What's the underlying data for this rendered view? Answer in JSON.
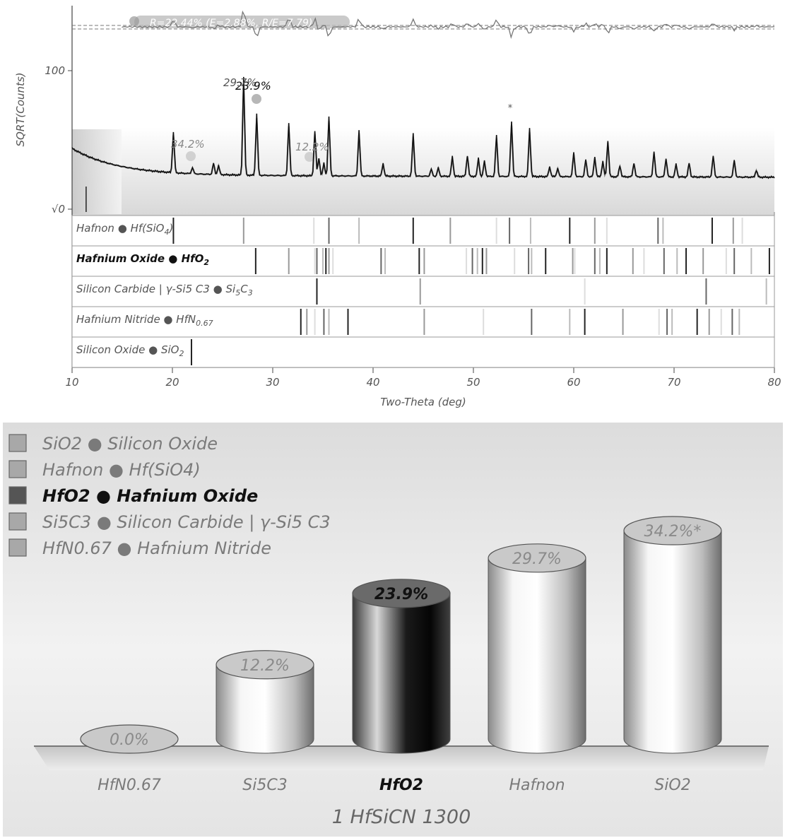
{
  "chart_data": [
    {
      "type": "line",
      "ylabel": "SQRT(Counts)",
      "xlabel": "Two-Theta (deg)",
      "xlim": [
        10,
        80
      ],
      "x_ticks": [
        "10",
        "20",
        "30",
        "40",
        "50",
        "60",
        "70",
        "80"
      ],
      "y_ticks": [
        "√0",
        "100"
      ],
      "residual_label": "R=22.44% (E=2.88%, R/E=7.79)",
      "peak_labels": [
        "29.7%",
        "23.9%",
        "34.2%",
        "12.2%",
        "*"
      ],
      "pattern_peaks": [
        {
          "x": 20.1,
          "y": 57
        },
        {
          "x": 22.0,
          "y": 9
        },
        {
          "x": 24.1,
          "y": 16
        },
        {
          "x": 24.6,
          "y": 13
        },
        {
          "x": 27.1,
          "y": 140
        },
        {
          "x": 28.4,
          "y": 87
        },
        {
          "x": 31.6,
          "y": 75
        },
        {
          "x": 34.2,
          "y": 64
        },
        {
          "x": 34.6,
          "y": 26
        },
        {
          "x": 35.1,
          "y": 18
        },
        {
          "x": 35.6,
          "y": 84
        },
        {
          "x": 38.6,
          "y": 65
        },
        {
          "x": 41.0,
          "y": 18
        },
        {
          "x": 44.0,
          "y": 60
        },
        {
          "x": 45.8,
          "y": 10
        },
        {
          "x": 46.5,
          "y": 12
        },
        {
          "x": 47.9,
          "y": 28
        },
        {
          "x": 49.4,
          "y": 30
        },
        {
          "x": 50.5,
          "y": 26
        },
        {
          "x": 51.1,
          "y": 22
        },
        {
          "x": 52.3,
          "y": 58
        },
        {
          "x": 53.8,
          "y": 78
        },
        {
          "x": 55.6,
          "y": 68
        },
        {
          "x": 57.6,
          "y": 14
        },
        {
          "x": 58.4,
          "y": 12
        },
        {
          "x": 60.0,
          "y": 34
        },
        {
          "x": 61.2,
          "y": 24
        },
        {
          "x": 62.1,
          "y": 28
        },
        {
          "x": 62.9,
          "y": 22
        },
        {
          "x": 63.4,
          "y": 52
        },
        {
          "x": 64.6,
          "y": 16
        },
        {
          "x": 66.0,
          "y": 20
        },
        {
          "x": 68.0,
          "y": 36
        },
        {
          "x": 69.2,
          "y": 26
        },
        {
          "x": 70.2,
          "y": 18
        },
        {
          "x": 71.5,
          "y": 20
        },
        {
          "x": 73.9,
          "y": 30
        },
        {
          "x": 76.0,
          "y": 24
        },
        {
          "x": 78.2,
          "y": 10
        }
      ],
      "phases": [
        {
          "label": "Hafnon ● Hf(SiO",
          "sub": "4",
          "after": ")",
          "bold": false,
          "lines": [
            20.1,
            27.1,
            34.1,
            35.6,
            38.6,
            44.0,
            47.7,
            52.3,
            53.6,
            55.7,
            59.6,
            62.1,
            63.3,
            68.4,
            68.9,
            73.8,
            75.9,
            76.8
          ]
        },
        {
          "label": "Hafnium Oxide ● HfO",
          "sub": "2",
          "after": "",
          "bold": true,
          "lines": [
            28.3,
            31.6,
            34.2,
            34.4,
            35.0,
            35.3,
            35.6,
            36.0,
            40.8,
            41.2,
            44.6,
            45.1,
            49.3,
            49.9,
            50.4,
            50.9,
            51.3,
            54.1,
            55.5,
            55.8,
            57.2,
            59.9,
            60.1,
            62.1,
            62.6,
            63.3,
            65.9,
            67.0,
            69.0,
            70.3,
            71.2,
            72.9,
            75.2,
            76.0,
            77.7,
            79.5
          ]
        },
        {
          "label": "Silicon Carbide | γ-Si5 C3 ● Si",
          "sub": "5",
          "after": "C",
          "sub2": "3",
          "bold": false,
          "lines": [
            34.4,
            44.7,
            61.1,
            73.2,
            79.2
          ]
        },
        {
          "label": "Hafnium Nitride ● HfN",
          "sub": "0.67",
          "after": "",
          "bold": false,
          "lines": [
            32.8,
            33.4,
            34.2,
            35.1,
            35.6,
            37.5,
            45.1,
            51.0,
            55.8,
            59.6,
            61.1,
            64.9,
            68.5,
            69.3,
            69.8,
            72.3,
            73.5,
            74.7,
            75.8,
            76.5
          ]
        },
        {
          "label": "Silicon Oxide ● SiO",
          "sub": "2",
          "after": "",
          "bold": false,
          "lines": [
            21.9
          ]
        }
      ]
    },
    {
      "type": "bar",
      "title": "1 HfSiCN 1300",
      "categories": [
        "HfN0.67",
        "Si5C3",
        "HfO2",
        "Hafnon",
        "SiO2"
      ],
      "values": [
        0.0,
        12.2,
        23.9,
        29.7,
        34.2
      ],
      "value_labels": [
        "0.0%",
        "12.2%",
        "23.9%",
        "29.7%",
        "34.2%*"
      ],
      "highlight": "HfO2",
      "legend": [
        {
          "text": "SiO2 ● Silicon Oxide",
          "bold": false
        },
        {
          "text": "Hafnon ● Hf(SiO4)",
          "bold": false
        },
        {
          "text": "HfO2 ● Hafnium Oxide",
          "bold": true
        },
        {
          "text": "Si5C3 ● Silicon Carbide | γ-Si5 C3",
          "bold": false
        },
        {
          "text": "HfN0.67 ● Hafnium Nitride",
          "bold": false
        }
      ]
    }
  ]
}
